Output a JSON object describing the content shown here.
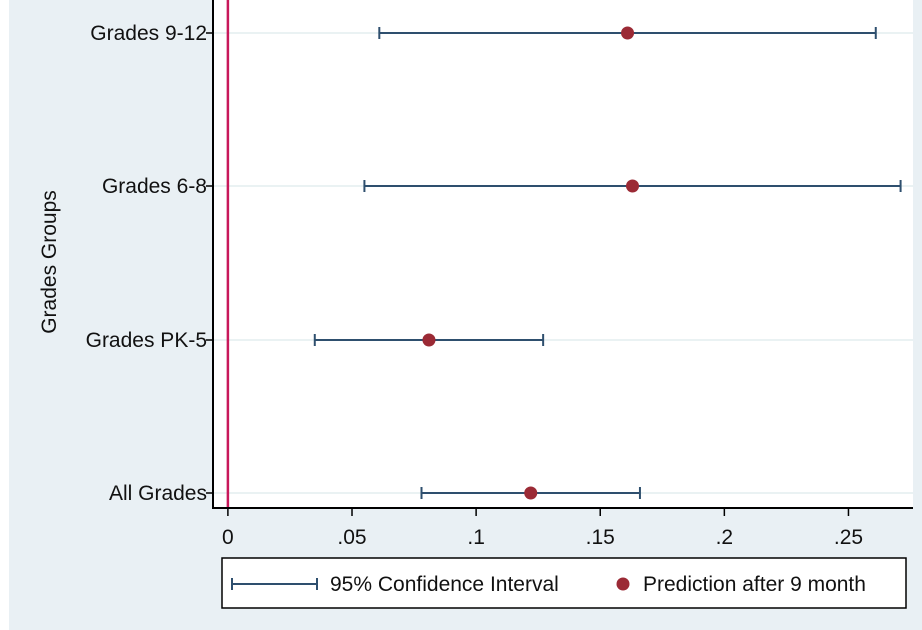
{
  "chart_data": {
    "type": "scatter",
    "subtype": "coefficient-plot-with-confidence-intervals",
    "title": "",
    "xlabel": "",
    "ylabel": "Grades Groups",
    "categories": [
      "Grades 9-12",
      "Grades 6-8",
      "Grades PK-5",
      "All Grades"
    ],
    "series": [
      {
        "name": "Prediction after 9 month",
        "kind": "point",
        "color": "#9b2a35",
        "values": [
          0.161,
          0.163,
          0.081,
          0.122
        ]
      },
      {
        "name": "95% Confidence Interval",
        "kind": "interval",
        "color": "#2e4f6e",
        "lower": [
          0.061,
          0.055,
          0.035,
          0.078
        ],
        "upper": [
          0.261,
          0.271,
          0.127,
          0.166
        ]
      }
    ],
    "reference_line": {
      "x": 0,
      "color": "#c8185a"
    },
    "xlim": [
      -0.006,
      0.276
    ],
    "xticks": [
      0,
      0.05,
      0.1,
      0.15,
      0.2,
      0.25
    ],
    "xtick_labels": [
      "0",
      ".05",
      ".1",
      ".15",
      ".2",
      ".25"
    ],
    "grid": "horizontal",
    "legend_position": "bottom"
  },
  "colors": {
    "plot_region_outer": "#e9f0f4",
    "plot_area": "#ffffff",
    "gridline": "#eaf2f3",
    "axis": "#000000"
  }
}
